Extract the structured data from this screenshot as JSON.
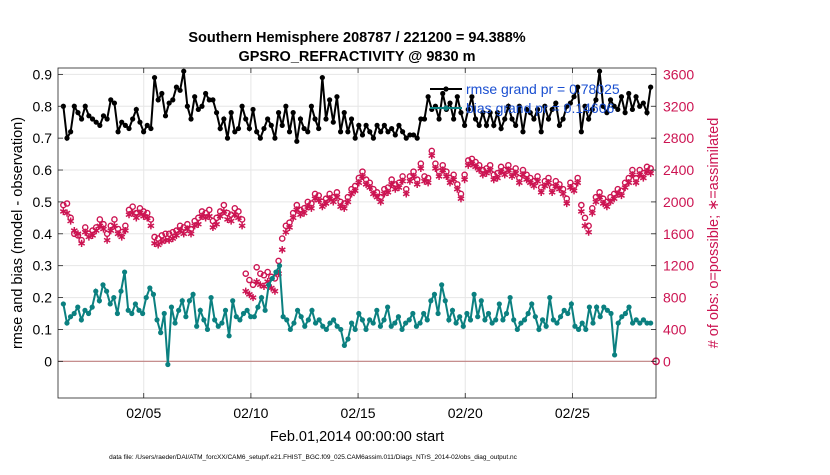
{
  "chart_data": {
    "type": "line",
    "title_lines": [
      "Southern Hemisphere 208787 / 221200 = 94.388%",
      "GPSRO_REFRACTIVITY @ 9830 m"
    ],
    "xlabel": "Feb.01,2014 00:00:00 start",
    "ylabel_left": "rmse and bias (model - observation)",
    "ylabel_right": "# of obs: o=possible; ∗=assimilated",
    "footer": "data file: /Users/raeder/DAI/ATM_forcXX/CAM6_setup/f.e21.FHIST_BGC.f09_025.CAM6assim.011/Diags_NTrS_2014-02/obs_diag_output.nc",
    "x_unit": "day of Feb 2014",
    "xlim": [
      1,
      28.9
    ],
    "x_ticks": [
      5,
      10,
      15,
      20,
      25
    ],
    "x_tick_labels": [
      "02/05",
      "02/10",
      "02/15",
      "02/20",
      "02/25"
    ],
    "ylim_left": [
      -0.115,
      0.92
    ],
    "y_ticks_left": [
      0,
      0.1,
      0.2,
      0.3,
      0.4,
      0.5,
      0.6,
      0.7,
      0.8,
      0.9
    ],
    "y_tick_labels_left": [
      "0",
      "0.1",
      "0.2",
      "0.3",
      "0.4",
      "0.5",
      "0.6",
      "0.7",
      "0.8",
      "0.9"
    ],
    "ylim_right": [
      -460,
      3680
    ],
    "y_ticks_right": [
      0,
      400,
      800,
      1200,
      1600,
      2000,
      2400,
      2800,
      3200,
      3600
    ],
    "y_tick_labels_right": [
      "0",
      "400",
      "800",
      "1200",
      "1600",
      "2000",
      "2400",
      "2800",
      "3200",
      "3600"
    ],
    "grid": true,
    "legend_position": "top-right",
    "colors": {
      "rmse": "#000000",
      "bias": "#0b8080",
      "obs": "#cc1452",
      "zero_line": "#c08080"
    },
    "series": [
      {
        "name": "rmse grand pr = 0.78025",
        "axis": "left",
        "values": [
          0.8,
          0.7,
          0.72,
          0.8,
          0.78,
          0.76,
          0.8,
          0.77,
          0.76,
          0.75,
          0.74,
          0.77,
          0.76,
          0.82,
          0.81,
          0.72,
          0.75,
          0.74,
          0.73,
          0.76,
          0.79,
          0.75,
          0.72,
          0.74,
          0.73,
          0.89,
          0.82,
          0.84,
          0.77,
          0.81,
          0.82,
          0.86,
          0.85,
          0.91,
          0.8,
          0.76,
          0.83,
          0.79,
          0.8,
          0.84,
          0.82,
          0.82,
          0.78,
          0.73,
          0.76,
          0.7,
          0.78,
          0.72,
          0.73,
          0.8,
          0.76,
          0.73,
          0.79,
          0.72,
          0.7,
          0.73,
          0.76,
          0.74,
          0.7,
          0.78,
          0.74,
          0.8,
          0.72,
          0.78,
          0.69,
          0.76,
          0.73,
          0.72,
          0.8,
          0.76,
          0.73,
          0.89,
          0.76,
          0.82,
          0.75,
          0.83,
          0.72,
          0.78,
          0.72,
          0.76,
          0.7,
          0.74,
          0.71,
          0.74,
          0.72,
          0.7,
          0.74,
          0.72,
          0.74,
          0.72,
          0.73,
          0.71,
          0.74,
          0.72,
          0.7,
          0.71,
          0.71,
          0.7,
          0.76,
          0.76,
          0.83,
          0.79,
          0.8,
          0.76,
          0.84,
          0.79,
          0.81,
          0.76,
          0.83,
          0.78,
          0.74,
          0.79,
          0.83,
          0.76,
          0.74,
          0.78,
          0.74,
          0.78,
          0.74,
          0.78,
          0.73,
          0.76,
          0.8,
          0.76,
          0.74,
          0.8,
          0.72,
          0.79,
          0.78,
          0.76,
          0.79,
          0.72,
          0.8,
          0.76,
          0.79,
          0.81,
          0.74,
          0.76,
          0.8,
          0.81,
          0.83,
          0.86,
          0.72,
          0.8,
          0.76,
          0.79,
          0.82,
          0.91,
          0.8,
          0.78,
          0.82,
          0.8,
          0.79,
          0.83,
          0.78,
          0.84,
          0.79,
          0.83,
          0.8,
          0.81,
          0.78,
          0.86
        ]
      },
      {
        "name": "bias grand pr = 0.14606",
        "axis": "left",
        "values": [
          0.18,
          0.12,
          0.14,
          0.15,
          0.17,
          0.13,
          0.16,
          0.15,
          0.17,
          0.22,
          0.19,
          0.24,
          0.22,
          0.18,
          0.2,
          0.15,
          0.22,
          0.28,
          0.16,
          0.15,
          0.18,
          0.16,
          0.15,
          0.2,
          0.23,
          0.21,
          0.13,
          0.09,
          0.15,
          -0.01,
          0.17,
          0.12,
          0.16,
          0.19,
          0.14,
          0.19,
          0.21,
          0.11,
          0.16,
          0.13,
          0.1,
          0.2,
          0.13,
          0.11,
          0.12,
          0.16,
          0.08,
          0.19,
          0.14,
          0.13,
          0.15,
          0.16,
          0.14,
          0.14,
          0.17,
          0.2,
          0.16,
          0.24,
          0.26,
          0.28,
          0.3,
          0.14,
          0.13,
          0.1,
          0.12,
          0.16,
          0.14,
          0.11,
          0.13,
          0.16,
          0.12,
          0.13,
          0.11,
          0.1,
          0.12,
          0.13,
          0.11,
          0.1,
          0.05,
          0.07,
          0.12,
          0.1,
          0.15,
          0.13,
          0.1,
          0.13,
          0.12,
          0.16,
          0.11,
          0.13,
          0.17,
          0.11,
          0.12,
          0.14,
          0.1,
          0.12,
          0.13,
          0.15,
          0.11,
          0.12,
          0.15,
          0.13,
          0.19,
          0.21,
          0.15,
          0.24,
          0.19,
          0.13,
          0.16,
          0.12,
          0.14,
          0.11,
          0.15,
          0.13,
          0.21,
          0.14,
          0.19,
          0.13,
          0.15,
          0.12,
          0.13,
          0.18,
          0.13,
          0.15,
          0.2,
          0.13,
          0.1,
          0.12,
          0.13,
          0.15,
          0.18,
          0.14,
          0.1,
          0.13,
          0.11,
          0.2,
          0.13,
          0.12,
          0.14,
          0.16,
          0.15,
          0.18,
          0.11,
          0.1,
          0.12,
          0.1,
          0.17,
          0.12,
          0.17,
          0.14,
          0.17,
          0.16,
          0.15,
          0.02,
          0.12,
          0.14,
          0.15,
          0.17,
          0.12,
          0.13,
          0.12,
          0.13,
          0.12,
          0.12
        ]
      },
      {
        "name": "obs possible",
        "axis": "right",
        "marker": "circle",
        "values": [
          1960,
          1980,
          1800,
          1600,
          1580,
          1520,
          1680,
          1600,
          1640,
          1680,
          1780,
          1720,
          1600,
          1700,
          1780,
          1660,
          1620,
          1700,
          1900,
          1940,
          1860,
          1920,
          1880,
          1860,
          1780,
          1560,
          1540,
          1580,
          1600,
          1600,
          1620,
          1640,
          1700,
          1680,
          1720,
          1660,
          1760,
          1800,
          1880,
          1860,
          1900,
          1760,
          1800,
          1880,
          1960,
          1860,
          1840,
          1920,
          1880,
          1780,
          1100,
          1020,
          960,
          1180,
          1100,
          1080,
          1120,
          1060,
          1040,
          1260,
          1540,
          1700,
          1740,
          1860,
          1960,
          1900,
          1920,
          2000,
          1980,
          2100,
          2080,
          2000,
          2040,
          2100,
          2060,
          2120,
          2000,
          1980,
          2060,
          2160,
          2200,
          2300,
          2380,
          2280,
          2240,
          2160,
          2120,
          2060,
          2160,
          2180,
          2280,
          2220,
          2240,
          2320,
          2160,
          2320,
          2380,
          2280,
          2480,
          2320,
          2300,
          2640,
          2480,
          2380,
          2460,
          2380,
          2300,
          2340,
          2220,
          2100,
          2340,
          2520,
          2540,
          2500,
          2460,
          2400,
          2420,
          2460,
          2340,
          2360,
          2440,
          2400,
          2460,
          2380,
          2420,
          2300,
          2400,
          2340,
          2300,
          2260,
          2320,
          2180,
          2260,
          2300,
          2180,
          2260,
          2220,
          2160,
          2040,
          2240,
          2200,
          2300,
          1960,
          1800,
          1700,
          1920,
          2060,
          2120,
          2040,
          2000,
          2060,
          2100,
          2160,
          2140,
          2240,
          2300,
          2400,
          2300,
          2400,
          2360,
          2440,
          2420
        ]
      },
      {
        "name": "obs assimilated",
        "axis": "right",
        "marker": "asterisk",
        "values": [
          1880,
          1860,
          1760,
          1640,
          1600,
          1480,
          1620,
          1560,
          1580,
          1640,
          1700,
          1660,
          1520,
          1640,
          1700,
          1600,
          1560,
          1640,
          1840,
          1860,
          1800,
          1860,
          1820,
          1800,
          1700,
          1480,
          1460,
          1500,
          1520,
          1520,
          1540,
          1580,
          1640,
          1600,
          1660,
          1600,
          1700,
          1720,
          1820,
          1800,
          1820,
          1680,
          1720,
          1820,
          1880,
          1780,
          1760,
          1840,
          1800,
          1700,
          880,
          840,
          800,
          1000,
          960,
          940,
          1000,
          920,
          880,
          1100,
          1400,
          1620,
          1680,
          1800,
          1900,
          1840,
          1860,
          1940,
          1920,
          2040,
          2020,
          1940,
          1980,
          2040,
          2000,
          2060,
          1940,
          1920,
          2000,
          2100,
          2140,
          2240,
          2320,
          2220,
          2180,
          2100,
          2060,
          2000,
          2100,
          2120,
          2220,
          2160,
          2180,
          2260,
          2100,
          2260,
          2320,
          2220,
          2420,
          2260,
          2240,
          2580,
          2420,
          2320,
          2400,
          2320,
          2240,
          2280,
          2160,
          2040,
          2280,
          2460,
          2480,
          2440,
          2400,
          2340,
          2360,
          2400,
          2280,
          2300,
          2380,
          2340,
          2400,
          2320,
          2360,
          2240,
          2340,
          2280,
          2240,
          2200,
          2260,
          2120,
          2200,
          2240,
          2120,
          2200,
          2160,
          2100,
          1980,
          2180,
          2140,
          2240,
          1880,
          1700,
          1620,
          1860,
          2000,
          2060,
          1980,
          1940,
          2000,
          2040,
          2100,
          2080,
          2180,
          2240,
          2340,
          2240,
          2340,
          2300,
          2380,
          2360
        ]
      }
    ]
  }
}
